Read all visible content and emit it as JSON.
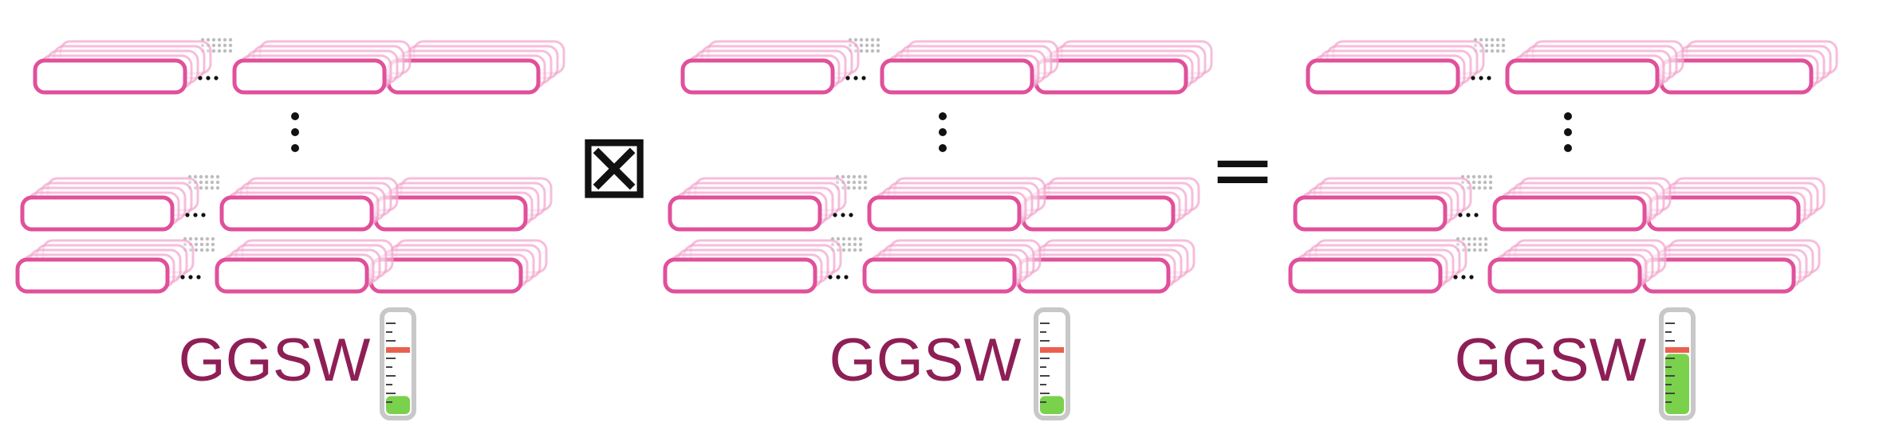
{
  "operands": [
    {
      "label": "GGSW",
      "noise_level": 0.18
    },
    {
      "label": "GGSW",
      "noise_level": 0.18
    },
    {
      "label": "GGSW",
      "noise_level": 0.6
    }
  ],
  "operators": {
    "product_symbol": "⊠",
    "equals_symbol": "="
  },
  "colors": {
    "rect_stroke": "#e0509b",
    "rect_ghost": "#f3a9cf",
    "label": "#8e1f56",
    "dots": "#111111",
    "dotted_link": "#bdbdbd",
    "gauge_frame": "#c8c8c8",
    "gauge_marker": "#e9604f",
    "gauge_fill": "#7ad14c",
    "gauge_ticks": "#444444"
  },
  "icons": {
    "gauge": "noise-thermometer-icon"
  }
}
